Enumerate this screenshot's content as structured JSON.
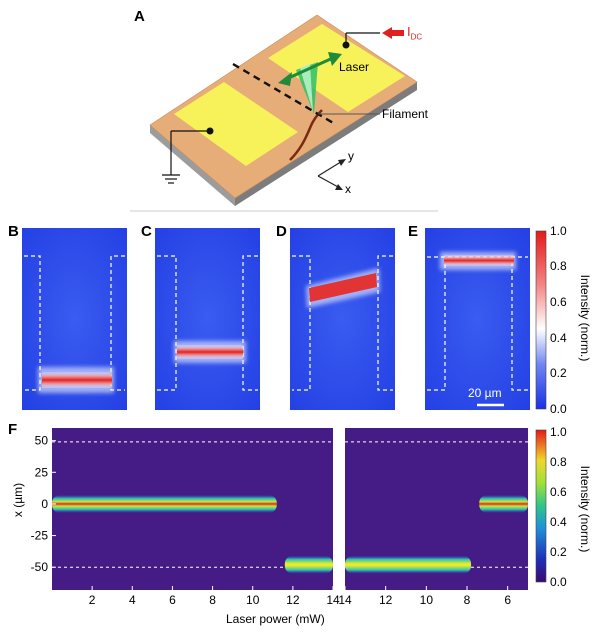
{
  "panel_labels": {
    "a": "A",
    "b": "B",
    "c": "C",
    "d": "D",
    "e": "E",
    "f": "F"
  },
  "schematic": {
    "current_label": "I",
    "current_subscript": "DC",
    "laser_label": "Laser",
    "filament_label": "Filament",
    "axis_y": "y",
    "axis_x": "x"
  },
  "colorbar_top": {
    "ticks": [
      "1.0",
      "0.8",
      "0.6",
      "0.4",
      "0.2",
      "0.0"
    ],
    "label": "Intensity (norm.)"
  },
  "colorbar_bottom": {
    "ticks": [
      "1.0",
      "0.8",
      "0.6",
      "0.4",
      "0.2",
      "0.0"
    ],
    "label": "Intensity (norm.)"
  },
  "scale_bar_label": "20 µm",
  "colors": {
    "pad_gold": "#f7f25a",
    "substrate": "#e6ad78",
    "image_blue": "#2a48e8",
    "map_bg": "#451b86",
    "current_arrow": "#e02020",
    "laser_green": "#1f8a3a"
  },
  "chart_data": {
    "type": "heatmap",
    "xlabel": "Laser power (mW)",
    "ylabel": "x (µm)",
    "y_ticks": [
      "50",
      "25",
      "0",
      "-25",
      "-50"
    ],
    "ylim": [
      -68,
      60
    ],
    "left_segment": {
      "x_ticks": [
        "2",
        "4",
        "6",
        "8",
        "10",
        "12",
        "14"
      ],
      "xlim": [
        0,
        14
      ],
      "filament_bands": [
        {
          "x_start": 0,
          "x_end": 11.2,
          "y": 0
        },
        {
          "x_start": 11.6,
          "x_end": 14,
          "y": -48
        }
      ]
    },
    "right_segment": {
      "x_ticks": [
        "14",
        "12",
        "10",
        "8",
        "6"
      ],
      "xlim": [
        14,
        5
      ],
      "filament_bands": [
        {
          "x_start": 14,
          "x_end": 7.8,
          "y": -48
        },
        {
          "x_start": 7.4,
          "x_end": 5,
          "y": 0
        }
      ]
    },
    "electrode_edges_um": [
      49,
      -50
    ]
  }
}
